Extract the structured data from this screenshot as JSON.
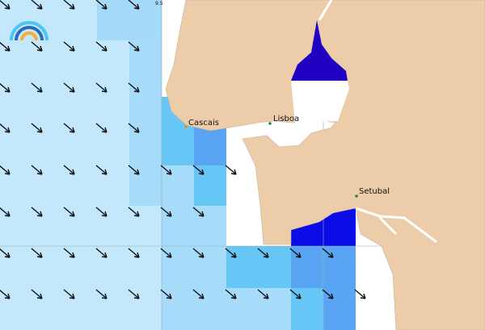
{
  "scale_label": "9.5",
  "places": [
    {
      "name": "Cascais"
    },
    {
      "name": "Lisboa"
    },
    {
      "name": "Setubal"
    }
  ]
}
